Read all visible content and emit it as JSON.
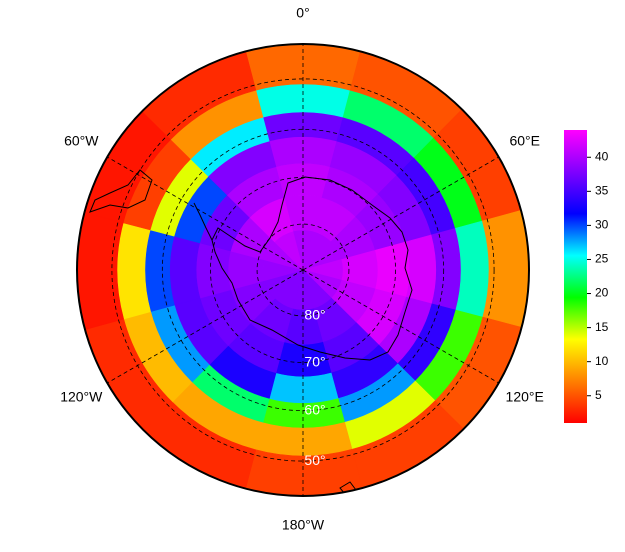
{
  "map": {
    "projection": "south polar stereographic",
    "lon": [
      0,
      30,
      60,
      90,
      120,
      150,
      180,
      -150,
      -120,
      -90,
      -60,
      -30
    ],
    "lat": [
      85,
      77.5,
      70,
      64,
      59,
      54,
      48
    ],
    "values": [
      [
        40,
        41,
        41,
        40,
        37,
        25,
        6
      ],
      [
        40,
        41,
        40,
        39,
        36,
        22,
        5
      ],
      [
        40,
        40,
        39,
        38,
        35,
        20,
        4
      ],
      [
        41,
        42,
        43,
        42,
        38,
        24,
        8
      ],
      [
        40,
        41,
        42,
        40,
        34,
        18,
        5
      ],
      [
        38,
        37,
        36,
        34,
        28,
        14,
        4
      ],
      [
        38,
        36,
        33,
        27,
        18,
        9,
        4
      ],
      [
        38,
        37,
        36,
        33,
        22,
        9,
        3
      ],
      [
        38,
        38,
        37,
        36,
        28,
        10,
        3
      ],
      [
        39,
        39,
        38,
        36,
        30,
        12,
        2
      ],
      [
        40,
        40,
        37,
        30,
        14,
        4,
        2
      ],
      [
        41,
        42,
        40,
        38,
        26,
        8,
        3
      ]
    ],
    "colormap": [
      "#ff0000",
      "#ff8000",
      "#ffff00",
      "#00ff00",
      "#00ffff",
      "#0000ff",
      "#8000ff",
      "#ff00ff"
    ],
    "clim": [
      1,
      44
    ],
    "cticks": [
      5,
      10,
      15,
      20,
      25,
      30,
      35,
      40
    ],
    "lon_labels": [
      {
        "value": 0,
        "label": "0°"
      },
      {
        "value": 60,
        "label": "60°E"
      },
      {
        "value": 120,
        "label": "120°E"
      },
      {
        "value": 180,
        "label": "180°W"
      },
      {
        "value": -120,
        "label": "120°W"
      },
      {
        "value": -60,
        "label": "60°W"
      }
    ],
    "lat_labels": [
      {
        "value": 80,
        "label": "80°"
      },
      {
        "value": 70,
        "label": "70°"
      },
      {
        "value": 60,
        "label": "60°"
      },
      {
        "value": 50,
        "label": "50°"
      }
    ]
  }
}
